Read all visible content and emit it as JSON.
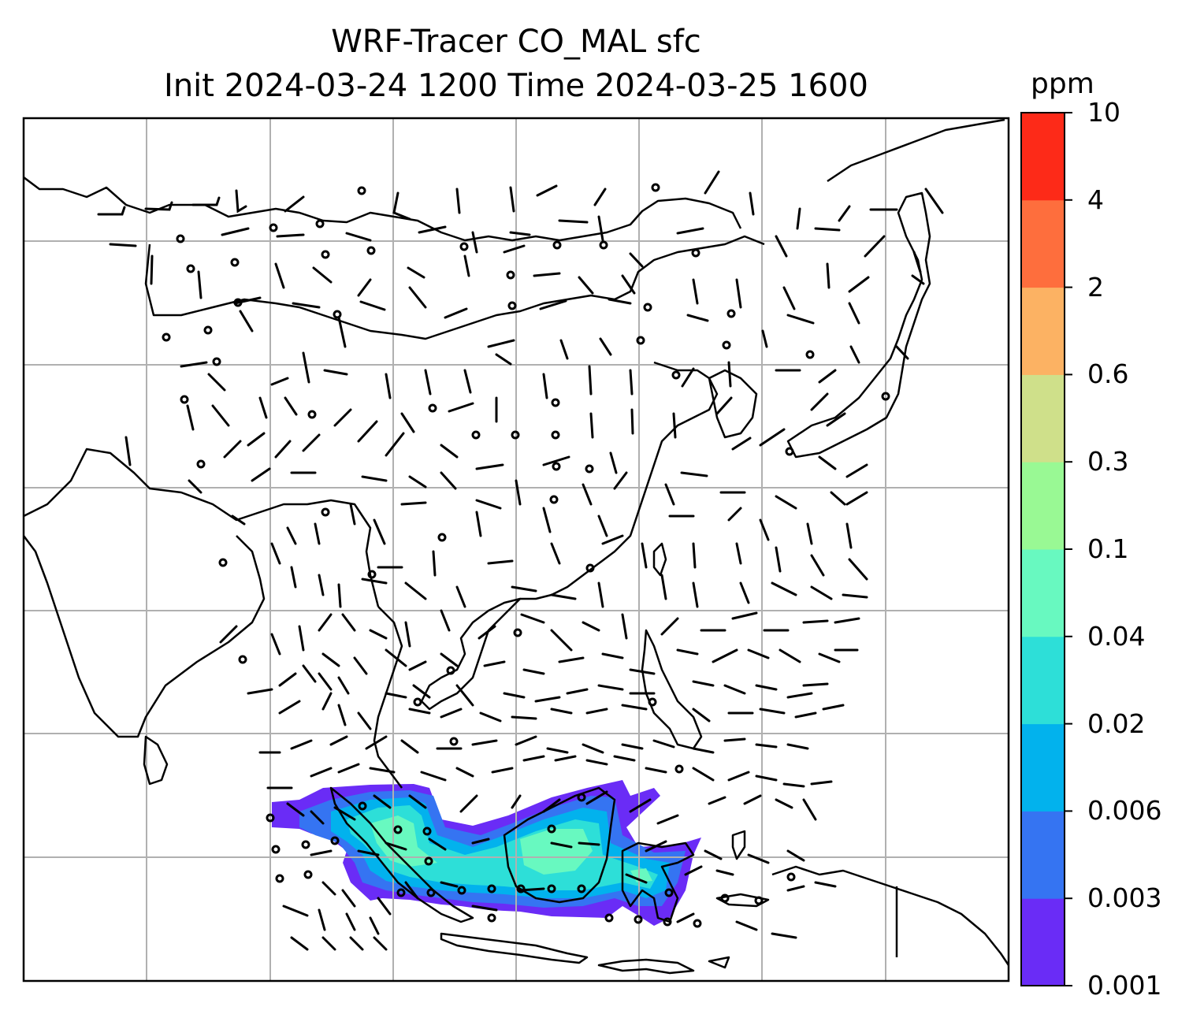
{
  "title": {
    "line1": "WRF-Tracer CO_MAL sfc",
    "line2": "Init 2024-03-24 1200 Time 2024-03-25 1600"
  },
  "colorbar": {
    "units": "ppm",
    "levels": [
      "0.001",
      "0.003",
      "0.006",
      "0.02",
      "0.04",
      "0.1",
      "0.3",
      "0.6",
      "2",
      "4",
      "10"
    ],
    "colors": [
      "#6a2cf6",
      "#3574f2",
      "#02b2ed",
      "#2ddfd8",
      "#68f9c0",
      "#99f994",
      "#cfe08a",
      "#fcb263",
      "#fe6e3d",
      "#fd2a18"
    ]
  },
  "map": {
    "field": "CO_MAL tracer concentration (surface)",
    "overlays": [
      "coastlines",
      "country borders",
      "lat/lon gridlines",
      "wind barbs"
    ]
  }
}
